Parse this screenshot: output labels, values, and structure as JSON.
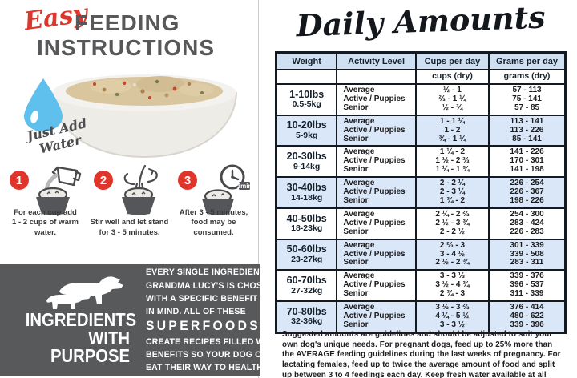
{
  "colors": {
    "accent_red": "#e0352b",
    "heading_gray": "#57585a",
    "table_header_blue": "#cfe0f3",
    "table_stripe_blue": "#d9e7f8",
    "table_border": "#141a21",
    "ingredients_panel_gray": "#58595b",
    "water_drop_blue": "#5fc0ed"
  },
  "left": {
    "title_script": "Easy",
    "title_line1": "FEEDING",
    "title_line2": "INSTRUCTIONS",
    "just_add_water": "Just Add Water",
    "steps": [
      {
        "number": "1",
        "line1": "For each cup add",
        "line2": "1 - 2 cups of warm water."
      },
      {
        "number": "2",
        "line1": "Stir well and let stand",
        "line2": "for 3 - 5 minutes."
      },
      {
        "number": "3",
        "line1": "After 3 - 5 minutes,",
        "line2": "food may be consumed.",
        "timer_badge": "3min"
      }
    ],
    "ingredients": {
      "heading_lines": [
        "INGREDIENTS",
        "WITH",
        "PURPOSE"
      ],
      "body_lines_before": [
        "EVERY SINGLE INGREDIENT IN",
        "GRANDMA LUCY'S IS CHOSEN",
        "WITH A SPECIFIC BENEFIT",
        "IN MIND. ALL OF THESE"
      ],
      "superfoods": "SUPERFOODS",
      "body_lines_after": [
        "CREATE RECIPES FILLED WITH",
        "BENEFITS SO YOUR DOG CAN",
        "EAT THEIR WAY TO HEALTH."
      ]
    }
  },
  "right": {
    "title": "Daily Amounts",
    "table": {
      "headers": [
        "Weight",
        "Activity Level",
        "Cups per day",
        "Grams per day"
      ],
      "units": {
        "cups": "cups (dry)",
        "grams": "grams (dry)"
      },
      "groups": [
        {
          "lbs": "1-10lbs",
          "kg": "0.5-5kg",
          "rows": [
            {
              "activity": "Average",
              "cups": "½ - 1",
              "grams": "57 - 113"
            },
            {
              "activity": "Active / Puppies",
              "cups": "⅔ - 1 ¼",
              "grams": "75 - 141"
            },
            {
              "activity": "Senior",
              "cups": "½ - ¾",
              "grams": "57 - 85"
            }
          ]
        },
        {
          "lbs": "10-20lbs",
          "kg": "5-9kg",
          "rows": [
            {
              "activity": "Average",
              "cups": "1 - 1 ¼",
              "grams": "113 - 141"
            },
            {
              "activity": "Active / Puppies",
              "cups": "1 - 2",
              "grams": "113 - 226"
            },
            {
              "activity": "Senior",
              "cups": "¾ - 1 ¼",
              "grams": "85 - 141"
            }
          ]
        },
        {
          "lbs": "20-30lbs",
          "kg": "9-14kg",
          "rows": [
            {
              "activity": "Average",
              "cups": "1 ¼ - 2",
              "grams": "141 - 226"
            },
            {
              "activity": "Active / Puppies",
              "cups": "1 ½ - 2 ⅔",
              "grams": "170 - 301"
            },
            {
              "activity": "Senior",
              "cups": "1 ¼ - 1 ¾",
              "grams": "141 - 198"
            }
          ]
        },
        {
          "lbs": "30-40lbs",
          "kg": "14-18kg",
          "rows": [
            {
              "activity": "Average",
              "cups": "2 - 2 ¼",
              "grams": "226 - 254"
            },
            {
              "activity": "Active / Puppies",
              "cups": "2 - 3 ¼",
              "grams": "226 - 367"
            },
            {
              "activity": "Senior",
              "cups": "1 ¾ - 2",
              "grams": "198 - 226"
            }
          ]
        },
        {
          "lbs": "40-50lbs",
          "kg": "18-23kg",
          "rows": [
            {
              "activity": "Average",
              "cups": "2 ¼ - 2 ⅔",
              "grams": "254 - 300"
            },
            {
              "activity": "Active / Puppies",
              "cups": "2 ½ - 3 ¾",
              "grams": "283 - 424"
            },
            {
              "activity": "Senior",
              "cups": "2 - 2 ½",
              "grams": "226 - 283"
            }
          ]
        },
        {
          "lbs": "50-60lbs",
          "kg": "23-27kg",
          "rows": [
            {
              "activity": "Average",
              "cups": "2 ⅔ - 3",
              "grams": "301 - 339"
            },
            {
              "activity": "Active / Puppies",
              "cups": "3 - 4 ½",
              "grams": "339 - 508"
            },
            {
              "activity": "Senior",
              "cups": "2 ½ - 2 ¾",
              "grams": "283 - 311"
            }
          ]
        },
        {
          "lbs": "60-70lbs",
          "kg": "27-32kg",
          "rows": [
            {
              "activity": "Average",
              "cups": "3 - 3 ⅓",
              "grams": "339 - 376"
            },
            {
              "activity": "Active / Puppies",
              "cups": "3 ½ - 4 ¾",
              "grams": "396 - 537"
            },
            {
              "activity": "Senior",
              "cups": "2 ¾ - 3",
              "grams": "311 - 339"
            }
          ]
        },
        {
          "lbs": "70-80lbs",
          "kg": "32-36kg",
          "rows": [
            {
              "activity": "Average",
              "cups": "3 ⅓ - 3 ⅔",
              "grams": "376 - 414"
            },
            {
              "activity": "Active / Puppies",
              "cups": "4 ¼ - 5 ½",
              "grams": "480 - 622"
            },
            {
              "activity": "Senior",
              "cups": "3 - 3 ½",
              "grams": "339 - 396"
            }
          ]
        }
      ]
    },
    "footnote": "Suggested amounts are guidelines and should be adjusted to suit your own dog's unique needs. For pregnant dogs, feed up to 25% more than the AVERAGE feeding guidelines during the last weeks of pregnancy. For lactating females, feed up to twice the average amount of food and split up between 3 to 4 feedings each day. Keep fresh water available at all times."
  }
}
